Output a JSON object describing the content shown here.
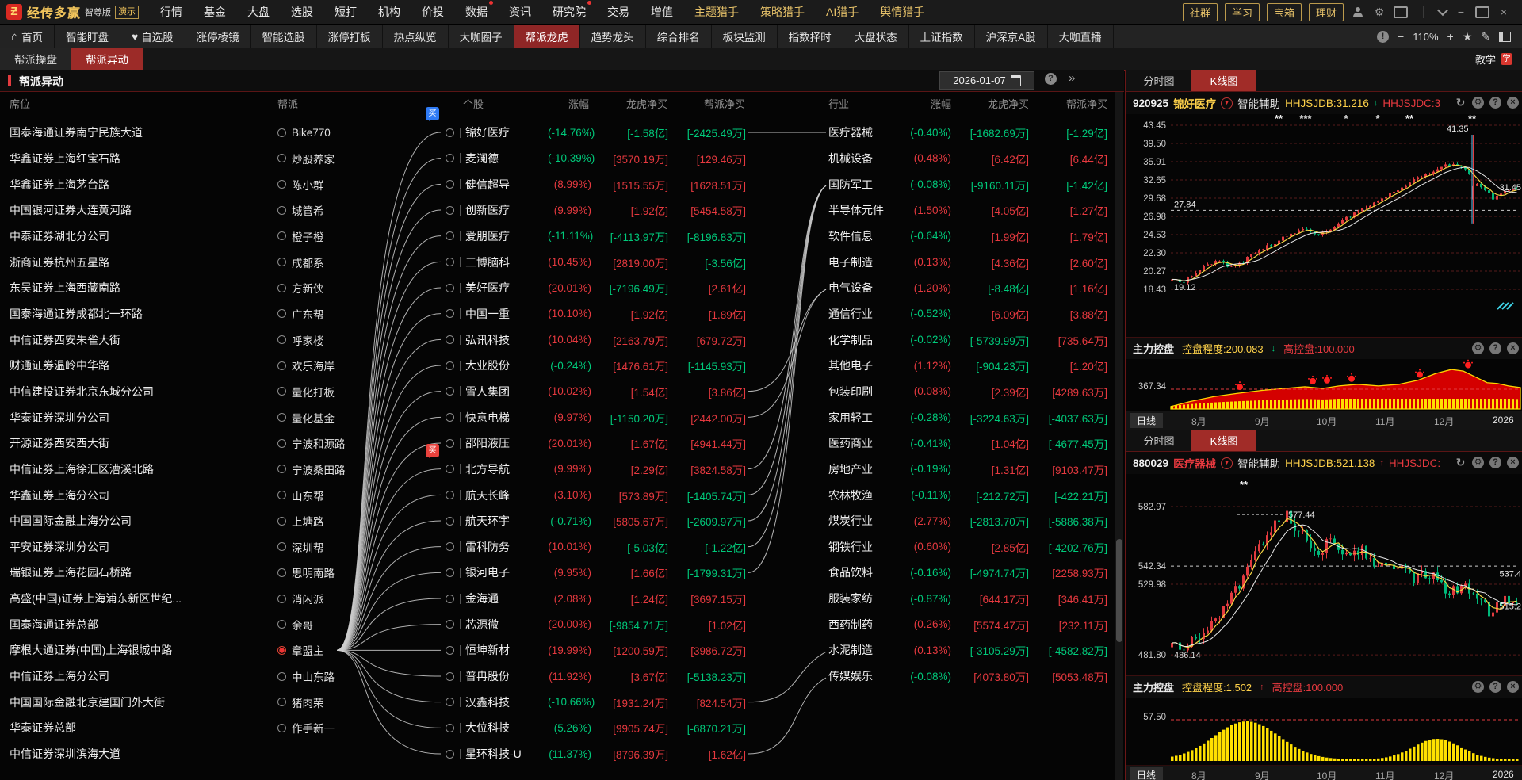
{
  "menubar": {
    "logo_glyph": "Ƶ",
    "logo_name": "经传多赢",
    "edition": "智尊版",
    "demo": "演示",
    "items": [
      {
        "label": "行情"
      },
      {
        "label": "基金"
      },
      {
        "label": "大盘"
      },
      {
        "label": "选股"
      },
      {
        "label": "短打"
      },
      {
        "label": "机构"
      },
      {
        "label": "价投"
      },
      {
        "label": "数据",
        "dot": true
      },
      {
        "label": "资讯"
      },
      {
        "label": "研究院",
        "dot": true
      },
      {
        "label": "交易"
      },
      {
        "label": "增值"
      },
      {
        "label": "主题猎手",
        "gold": true
      },
      {
        "label": "策略猎手",
        "gold": true
      },
      {
        "label": "AI猎手",
        "gold": true
      },
      {
        "label": "舆情猎手",
        "gold": true
      }
    ],
    "gold_buttons": [
      "理财",
      "宝箱",
      "学习",
      "社群"
    ]
  },
  "toolbar": {
    "items": [
      {
        "label": "首页",
        "icon": "home"
      },
      {
        "label": "智能盯盘"
      },
      {
        "label": "自选股",
        "icon": "heart"
      },
      {
        "label": "涨停棱镜"
      },
      {
        "label": "智能选股"
      },
      {
        "label": "涨停打板"
      },
      {
        "label": "热点纵览"
      },
      {
        "label": "大咖圈子"
      },
      {
        "label": "帮派龙虎",
        "active": true
      },
      {
        "label": "趋势龙头"
      },
      {
        "label": "综合排名"
      },
      {
        "label": "板块监测"
      },
      {
        "label": "指数择时"
      },
      {
        "label": "大盘状态"
      },
      {
        "label": "上证指数"
      },
      {
        "label": "沪深京A股"
      },
      {
        "label": "大咖直播"
      }
    ],
    "zoom_level": "110%"
  },
  "tabs": {
    "items": [
      {
        "label": "帮派操盘"
      },
      {
        "label": "帮派异动",
        "active": true
      }
    ],
    "right_label": "教学"
  },
  "page": {
    "title": "帮派异动",
    "date": "2026-01-07"
  },
  "table": {
    "headers": {
      "seat": "席位",
      "gang": "帮派",
      "stock": "个股",
      "change": "涨幅",
      "lh_net": "龙虎净买",
      "gang_net": "帮派净买",
      "industry": "行业",
      "change2": "涨幅",
      "lh_net2": "龙虎净买",
      "gang_net2": "帮派净买"
    },
    "seats": [
      "国泰海通证券南宁民族大道",
      "华鑫证券上海红宝石路",
      "华鑫证券上海茅台路",
      "中国银河证券大连黄河路",
      "中泰证券湖北分公司",
      "浙商证券杭州五星路",
      "东吴证券上海西藏南路",
      "国泰海通证券成都北一环路",
      "中信证券西安朱雀大街",
      "财通证券温岭中华路",
      "中信建投证券北京东城分公司",
      "华泰证券深圳分公司",
      "开源证券西安西大街",
      "中信证券上海徐汇区漕溪北路",
      "华鑫证券上海分公司",
      "中国国际金融上海分公司",
      "平安证券深圳分公司",
      "瑞银证券上海花园石桥路",
      "高盛(中国)证券上海浦东新区世纪...",
      "国泰海通证券总部",
      "摩根大通证券(中国)上海银城中路",
      "中信证券上海分公司",
      "中国国际金融北京建国门外大街",
      "华泰证券总部",
      "中信证券深圳滨海大道"
    ],
    "gangs": [
      "Bike770",
      "炒股养家",
      "陈小群",
      "城管希",
      "橙子橙",
      "成都系",
      "方新侠",
      "广东帮",
      "呼家楼",
      "欢乐海岸",
      "量化打板",
      "量化基金",
      "宁波和源路",
      "宁波桑田路",
      "山东帮",
      "上塘路",
      "深圳帮",
      "思明南路",
      "消闲派",
      "余哥",
      "章盟主",
      "中山东路",
      "猪肉荣",
      "作手新一"
    ],
    "selected_gang_index": 20,
    "stocks": [
      [
        "锦好医疗",
        "(-14.76%)",
        "g",
        "[-1.58亿]",
        "g",
        "[-2425.49万]",
        "g"
      ],
      [
        "麦澜德",
        "(-10.39%)",
        "g",
        "[3570.19万]",
        "r",
        "[129.46万]",
        "r"
      ],
      [
        "健信超导",
        "(8.99%)",
        "r",
        "[1515.55万]",
        "r",
        "[1628.51万]",
        "r"
      ],
      [
        "创新医疗",
        "(9.99%)",
        "r",
        "[1.92亿]",
        "r",
        "[5454.58万]",
        "r"
      ],
      [
        "爱朋医疗",
        "(-11.11%)",
        "g",
        "[-4113.97万]",
        "g",
        "[-8196.83万]",
        "g"
      ],
      [
        "三博脑科",
        "(10.45%)",
        "r",
        "[2819.00万]",
        "r",
        "[-3.56亿]",
        "g"
      ],
      [
        "美好医疗",
        "(20.01%)",
        "r",
        "[-7196.49万]",
        "g",
        "[2.61亿]",
        "r"
      ],
      [
        "中国一重",
        "(10.10%)",
        "r",
        "[1.92亿]",
        "r",
        "[1.89亿]",
        "r"
      ],
      [
        "弘讯科技",
        "(10.04%)",
        "r",
        "[2163.79万]",
        "r",
        "[679.72万]",
        "r"
      ],
      [
        "大业股份",
        "(-0.24%)",
        "g",
        "[1476.61万]",
        "r",
        "[-1145.93万]",
        "g"
      ],
      [
        "雪人集团",
        "(10.02%)",
        "r",
        "[1.54亿]",
        "r",
        "[3.86亿]",
        "r"
      ],
      [
        "快意电梯",
        "(9.97%)",
        "r",
        "[-1150.20万]",
        "g",
        "[2442.00万]",
        "r"
      ],
      [
        "邵阳液压",
        "(20.01%)",
        "r",
        "[1.67亿]",
        "r",
        "[4941.44万]",
        "r"
      ],
      [
        "北方导航",
        "(9.99%)",
        "r",
        "[2.29亿]",
        "r",
        "[3824.58万]",
        "r"
      ],
      [
        "航天长峰",
        "(3.10%)",
        "r",
        "[573.89万]",
        "r",
        "[-1405.74万]",
        "g"
      ],
      [
        "航天环宇",
        "(-0.71%)",
        "g",
        "[5805.67万]",
        "r",
        "[-2609.97万]",
        "g"
      ],
      [
        "雷科防务",
        "(10.01%)",
        "r",
        "[-5.03亿]",
        "g",
        "[-1.22亿]",
        "g"
      ],
      [
        "银河电子",
        "(9.95%)",
        "r",
        "[1.66亿]",
        "r",
        "[-1799.31万]",
        "g"
      ],
      [
        "金海通",
        "(2.08%)",
        "r",
        "[1.24亿]",
        "r",
        "[3697.15万]",
        "r"
      ],
      [
        "芯源微",
        "(20.00%)",
        "r",
        "[-9854.71万]",
        "g",
        "[1.02亿]",
        "r"
      ],
      [
        "恒坤新材",
        "(19.99%)",
        "r",
        "[1200.59万]",
        "r",
        "[3986.72万]",
        "r"
      ],
      [
        "普冉股份",
        "(11.92%)",
        "r",
        "[3.67亿]",
        "r",
        "[-5138.23万]",
        "g"
      ],
      [
        "汉鑫科技",
        "(-10.66%)",
        "g",
        "[1931.24万]",
        "r",
        "[824.54万]",
        "r"
      ],
      [
        "大位科技",
        "(5.26%)",
        "g",
        "[9905.74万]",
        "r",
        "[-6870.21万]",
        "g"
      ],
      [
        "星环科技-U",
        "(11.37%)",
        "g",
        "[8796.39万]",
        "r",
        "[1.62亿]",
        "r"
      ]
    ],
    "industries": [
      [
        "医疗器械",
        "(-0.40%)",
        "g",
        "[-1682.69万]",
        "g",
        "[-1.29亿]",
        "g"
      ],
      [
        "机械设备",
        "(0.48%)",
        "r",
        "[6.42亿]",
        "r",
        "[6.44亿]",
        "r"
      ],
      [
        "国防军工",
        "(-0.08%)",
        "g",
        "[-9160.11万]",
        "g",
        "[-1.42亿]",
        "g"
      ],
      [
        "半导体元件",
        "(1.50%)",
        "r",
        "[4.05亿]",
        "r",
        "[1.27亿]",
        "r"
      ],
      [
        "软件信息",
        "(-0.64%)",
        "g",
        "[1.99亿]",
        "r",
        "[1.79亿]",
        "r"
      ],
      [
        "电子制造",
        "(0.13%)",
        "r",
        "[4.36亿]",
        "r",
        "[2.60亿]",
        "r"
      ],
      [
        "电气设备",
        "(1.20%)",
        "r",
        "[-8.48亿]",
        "g",
        "[1.16亿]",
        "r"
      ],
      [
        "通信行业",
        "(-0.52%)",
        "g",
        "[6.09亿]",
        "r",
        "[3.88亿]",
        "r"
      ],
      [
        "化学制品",
        "(-0.02%)",
        "g",
        "[-5739.99万]",
        "g",
        "[735.64万]",
        "r"
      ],
      [
        "其他电子",
        "(1.12%)",
        "r",
        "[-904.23万]",
        "g",
        "[1.20亿]",
        "r"
      ],
      [
        "包装印刷",
        "(0.08%)",
        "r",
        "[2.39亿]",
        "r",
        "[4289.63万]",
        "r"
      ],
      [
        "家用轻工",
        "(-0.28%)",
        "g",
        "[-3224.63万]",
        "g",
        "[-4037.63万]",
        "g"
      ],
      [
        "医药商业",
        "(-0.41%)",
        "g",
        "[1.04亿]",
        "r",
        "[-4677.45万]",
        "g"
      ],
      [
        "房地产业",
        "(-0.19%)",
        "g",
        "[1.31亿]",
        "r",
        "[9103.47万]",
        "r"
      ],
      [
        "农林牧渔",
        "(-0.11%)",
        "g",
        "[-212.72万]",
        "g",
        "[-422.21万]",
        "g"
      ],
      [
        "煤炭行业",
        "(2.77%)",
        "r",
        "[-2813.70万]",
        "g",
        "[-5886.38万]",
        "g"
      ],
      [
        "钢铁行业",
        "(0.60%)",
        "r",
        "[2.85亿]",
        "r",
        "[-4202.76万]",
        "g"
      ],
      [
        "食品饮料",
        "(-0.16%)",
        "g",
        "[-4974.74万]",
        "g",
        "[2258.93万]",
        "r"
      ],
      [
        "服装家纺",
        "(-0.87%)",
        "g",
        "[644.17万]",
        "r",
        "[346.41万]",
        "r"
      ],
      [
        "西药制药",
        "(0.26%)",
        "r",
        "[5574.47万]",
        "r",
        "[232.11万]",
        "r"
      ],
      [
        "水泥制造",
        "(0.13%)",
        "r",
        "[-3105.29万]",
        "g",
        "[-4582.82万]",
        "g"
      ],
      [
        "传媒娱乐",
        "(-0.08%)",
        "g",
        "[4073.80万]",
        "r",
        "[5053.48万]",
        "r"
      ]
    ],
    "badges": [
      {
        "row": 0,
        "color": "#2f7bf5",
        "label": "买"
      },
      {
        "row": 13,
        "color": "#e8413c",
        "label": "买"
      }
    ],
    "industry_links": [
      {
        "from": 0,
        "to": 0,
        "straight": true
      },
      {
        "from": 13,
        "to": 2
      },
      {
        "from": 14,
        "to": 2
      },
      {
        "from": 15,
        "to": 2
      },
      {
        "from": 16,
        "to": 2
      },
      {
        "from": 17,
        "to": 2
      },
      {
        "from": 10,
        "to": 6
      },
      {
        "from": 11,
        "to": 6
      },
      {
        "from": 22,
        "to": 20
      },
      {
        "from": 24,
        "to": 21
      }
    ]
  },
  "chart_data": [
    {
      "type": "candlestick",
      "code": "920925",
      "name": "锦好医疗",
      "name_color": "#ffd24a",
      "period_tabs": [
        "分时图",
        "K线图"
      ],
      "active_tab": "K线图",
      "aux_label": "智能辅助",
      "ind1_label": "HHJSJDB:31.216",
      "ind1_dir": "down",
      "ind2_label": "HHJSJDC:3",
      "y_ticks": [
        43.45,
        39.5,
        35.91,
        32.65,
        29.68,
        26.98,
        24.53,
        22.3,
        20.27,
        18.43
      ],
      "scale": "log_10pct_per_step",
      "annotations": {
        "spike_high": "41.35",
        "last_price": "31.45",
        "dash_level": "27.84",
        "early_low": "19.12"
      },
      "x_labels": [
        "8月",
        "9月",
        "10月",
        "11月",
        "12月",
        "2026"
      ],
      "period_label": "日线",
      "trend": [
        [
          0,
          19.3
        ],
        [
          0.03,
          19.12
        ],
        [
          0.08,
          20.5
        ],
        [
          0.13,
          21.3
        ],
        [
          0.18,
          20.6
        ],
        [
          0.25,
          22.5
        ],
        [
          0.32,
          24.0
        ],
        [
          0.38,
          25.2
        ],
        [
          0.43,
          24.6
        ],
        [
          0.5,
          26.5
        ],
        [
          0.56,
          28.2
        ],
        [
          0.62,
          30.0
        ],
        [
          0.68,
          32.0
        ],
        [
          0.73,
          33.5
        ],
        [
          0.78,
          34.8
        ],
        [
          0.82,
          35.6
        ],
        [
          0.86,
          34.0
        ],
        [
          0.895,
          31.5
        ],
        [
          0.93,
          29.6
        ],
        [
          0.955,
          30.5
        ],
        [
          1,
          31.3
        ]
      ],
      "spike": {
        "index": 76,
        "high": 41.35,
        "low": 26.0,
        "open": 29.5,
        "close": 31.6
      },
      "signals": [
        [
          192,
          2
        ],
        [
          226,
          3
        ],
        [
          277,
          1
        ],
        [
          317,
          1
        ],
        [
          357,
          2
        ],
        [
          436,
          2
        ]
      ],
      "control": {
        "label": "主力控盘",
        "kp_label": "控盘程度:200.083",
        "kp_dir": "down",
        "gk_label": "高控盘:100.000",
        "tick": "367.34",
        "area": [
          [
            56,
            0.06
          ],
          [
            80,
            0.18
          ],
          [
            110,
            0.3
          ],
          [
            140,
            0.38
          ],
          [
            170,
            0.45
          ],
          [
            200,
            0.5
          ],
          [
            225,
            0.54
          ],
          [
            248,
            0.5
          ],
          [
            268,
            0.56
          ],
          [
            292,
            0.6
          ],
          [
            318,
            0.56
          ],
          [
            344,
            0.6
          ],
          [
            368,
            0.7
          ],
          [
            390,
            0.86
          ],
          [
            410,
            0.96
          ],
          [
            425,
            0.92
          ],
          [
            440,
            0.78
          ],
          [
            455,
            0.64
          ],
          [
            468,
            0.62
          ],
          [
            482,
            0.56
          ],
          [
            497,
            0.52
          ]
        ],
        "suns": [
          [
            143,
            0.42
          ],
          [
            235,
            0.56
          ],
          [
            253,
            0.58
          ],
          [
            284,
            0.62
          ],
          [
            370,
            0.72
          ],
          [
            431,
            0.95
          ]
        ]
      }
    },
    {
      "type": "candlestick",
      "code": "880029",
      "name": "医疗器械",
      "name_color": "#e6393f",
      "period_tabs": [
        "分时图",
        "K线图"
      ],
      "active_tab": "K线图",
      "aux_label": "智能辅助",
      "ind1_label": "HHJSJDB:521.138",
      "ind1_dir": "up",
      "ind2_label": "HHJSJDC:",
      "y_ticks": [
        582.97,
        542.34,
        529.98,
        481.8
      ],
      "annotations": {
        "peak": "577.44",
        "early_low": "486.14",
        "right_hi": "537.4",
        "right_lo": "515.2",
        "dash_level": "542.34"
      },
      "x_labels": [
        "8月",
        "9月",
        "10月",
        "11月",
        "12月",
        "2026"
      ],
      "period_label": "日线",
      "trend": [
        [
          0,
          487
        ],
        [
          0.04,
          486.14
        ],
        [
          0.1,
          500
        ],
        [
          0.16,
          515
        ],
        [
          0.22,
          540
        ],
        [
          0.27,
          560
        ],
        [
          0.3,
          572
        ],
        [
          0.33,
          577.44
        ],
        [
          0.37,
          565
        ],
        [
          0.42,
          552
        ],
        [
          0.46,
          560
        ],
        [
          0.5,
          548
        ],
        [
          0.55,
          555
        ],
        [
          0.6,
          540
        ],
        [
          0.65,
          545
        ],
        [
          0.7,
          532
        ],
        [
          0.75,
          538
        ],
        [
          0.8,
          524
        ],
        [
          0.85,
          530
        ],
        [
          0.88,
          518
        ],
        [
          0.92,
          512
        ],
        [
          0.96,
          520
        ],
        [
          1,
          515.2
        ]
      ],
      "signals": [
        [
          148,
          2
        ]
      ],
      "control": {
        "label": "主力控盘",
        "kp_label": "控盘程度:1.502",
        "kp_dir": "up",
        "gk_label": "高控盘:100.000",
        "tick": "57.50",
        "humps": [
          [
            150,
            58,
            48
          ],
          [
            390,
            42,
            26
          ]
        ]
      }
    }
  ]
}
